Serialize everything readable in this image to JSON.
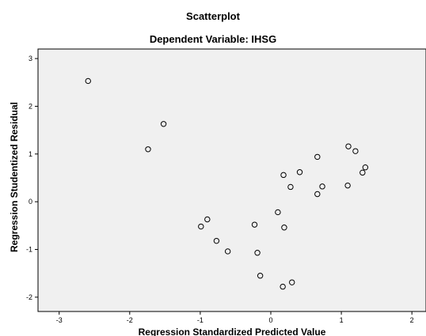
{
  "chart_data": {
    "type": "scatter",
    "title": "Scatterplot",
    "subtitle": "Dependent Variable: IHSG",
    "xlabel": "Regression Standardized Predicted Value",
    "ylabel": "Regression Studentized Residual",
    "xlim": [
      -3.3,
      2.2
    ],
    "ylim": [
      -2.3,
      3.2
    ],
    "xticks": [
      "-3",
      "-2",
      "-1",
      "0",
      "1",
      "2"
    ],
    "yticks": [
      "-2",
      "-1",
      "0",
      "1",
      "2",
      "3"
    ],
    "grid": false,
    "plot_background": "#f0f0f0",
    "marker": "open-circle",
    "points": [
      {
        "x": -2.59,
        "y": 2.53
      },
      {
        "x": -1.52,
        "y": 1.63
      },
      {
        "x": -1.74,
        "y": 1.1
      },
      {
        "x": -0.99,
        "y": -0.52
      },
      {
        "x": -0.9,
        "y": -0.37
      },
      {
        "x": -0.77,
        "y": -0.82
      },
      {
        "x": -0.61,
        "y": -1.04
      },
      {
        "x": -0.23,
        "y": -0.48
      },
      {
        "x": -0.19,
        "y": -1.07
      },
      {
        "x": -0.15,
        "y": -1.55
      },
      {
        "x": 0.1,
        "y": -0.22
      },
      {
        "x": 0.18,
        "y": 0.56
      },
      {
        "x": 0.19,
        "y": -0.54
      },
      {
        "x": 0.17,
        "y": -1.78
      },
      {
        "x": 0.28,
        "y": 0.31
      },
      {
        "x": 0.3,
        "y": -1.69
      },
      {
        "x": 0.41,
        "y": 0.62
      },
      {
        "x": 0.66,
        "y": 0.94
      },
      {
        "x": 0.66,
        "y": 0.16
      },
      {
        "x": 0.73,
        "y": 0.32
      },
      {
        "x": 1.1,
        "y": 1.16
      },
      {
        "x": 1.09,
        "y": 0.34
      },
      {
        "x": 1.2,
        "y": 1.06
      },
      {
        "x": 1.3,
        "y": 0.61
      },
      {
        "x": 1.34,
        "y": 0.72
      }
    ]
  }
}
